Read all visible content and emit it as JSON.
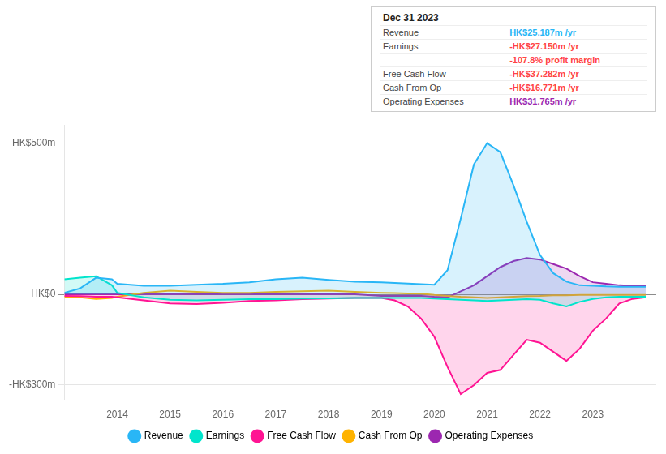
{
  "chart_data": {
    "type": "line",
    "x": [
      2013.0,
      2013.3,
      2013.6,
      2013.9,
      2014.0,
      2014.5,
      2015.0,
      2015.5,
      2016.0,
      2016.5,
      2017.0,
      2017.5,
      2018.0,
      2018.5,
      2019.0,
      2019.25,
      2019.5,
      2019.75,
      2020.0,
      2020.25,
      2020.5,
      2020.75,
      2021.0,
      2021.25,
      2021.5,
      2021.75,
      2022.0,
      2022.25,
      2022.5,
      2022.75,
      2023.0,
      2023.25,
      2023.5,
      2023.75,
      2024.0
    ],
    "series": [
      {
        "name": "Revenue",
        "color": "#29b6f6",
        "type": "area",
        "values": [
          5,
          20,
          55,
          50,
          35,
          28,
          28,
          32,
          35,
          40,
          50,
          55,
          48,
          42,
          40,
          38,
          36,
          34,
          32,
          80,
          250,
          430,
          500,
          470,
          360,
          240,
          130,
          70,
          42,
          30,
          28,
          26,
          25,
          25,
          25
        ]
      },
      {
        "name": "Earnings",
        "color": "#00e5cc",
        "type": "area",
        "values": [
          50,
          55,
          60,
          30,
          5,
          -10,
          -18,
          -20,
          -18,
          -16,
          -16,
          -14,
          -13,
          -12,
          -12,
          -12,
          -12,
          -12,
          -14,
          -16,
          -18,
          -20,
          -22,
          -20,
          -18,
          -16,
          -18,
          -30,
          -40,
          -25,
          -15,
          -10,
          -8,
          -8,
          -8
        ]
      },
      {
        "name": "Free Cash Flow",
        "color": "#ff1493",
        "type": "area",
        "values": [
          -5,
          -6,
          -8,
          -8,
          -10,
          -20,
          -30,
          -32,
          -28,
          -22,
          -20,
          -16,
          -14,
          -12,
          -12,
          -20,
          -40,
          -80,
          -140,
          -240,
          -330,
          -300,
          -260,
          -250,
          -200,
          -150,
          -160,
          -190,
          -220,
          -180,
          -120,
          -80,
          -30,
          -15,
          -10
        ]
      },
      {
        "name": "Cash From Op",
        "color": "#ffb300",
        "type": "line",
        "values": [
          -8,
          -10,
          -15,
          -12,
          -8,
          5,
          12,
          8,
          5,
          5,
          8,
          10,
          12,
          8,
          5,
          4,
          3,
          2,
          -2,
          -5,
          -8,
          -10,
          -12,
          -10,
          -8,
          -6,
          -5,
          -3,
          -3,
          -2,
          -2,
          -2,
          -2,
          -2,
          -2
        ]
      },
      {
        "name": "Operating Expenses",
        "color": "#9c27b0",
        "type": "area",
        "values": [
          0,
          0,
          0,
          0,
          0,
          0,
          0,
          0,
          0,
          0,
          0,
          0,
          0,
          0,
          -5,
          -5,
          -5,
          -5,
          -8,
          -10,
          10,
          30,
          60,
          90,
          110,
          120,
          115,
          100,
          85,
          60,
          40,
          35,
          30,
          28,
          28
        ]
      }
    ],
    "xlim": [
      2013.0,
      2024.2
    ],
    "xticks": [
      2014,
      2015,
      2016,
      2017,
      2018,
      2019,
      2020,
      2021,
      2022,
      2023
    ],
    "ylim": [
      -350,
      560
    ],
    "yticks": [
      {
        "value": -300,
        "label": "-HK$300m"
      },
      {
        "value": 0,
        "label": "HK$0"
      },
      {
        "value": 500,
        "label": "HK$500m"
      }
    ],
    "grid": "y",
    "legend": "bottom",
    "annotations": [
      {
        "text": "Dec 31 2023"
      },
      {
        "label": "Revenue",
        "text": "HK$25.187m /yr",
        "color": "#29b6f6"
      },
      {
        "label": "Earnings",
        "text": "-HK$27.150m /yr",
        "color": "#ff4444"
      },
      {
        "text": "-107.8% profit margin",
        "color": "#ff4444"
      },
      {
        "label": "Free Cash Flow",
        "text": "-HK$37.282m /yr",
        "color": "#ff4444"
      },
      {
        "label": "Cash From Op",
        "text": "-HK$16.771m /yr",
        "color": "#ff4444"
      },
      {
        "label": "Operating Expenses",
        "text": "HK$31.765m /yr",
        "color": "#9c27b0"
      }
    ]
  }
}
